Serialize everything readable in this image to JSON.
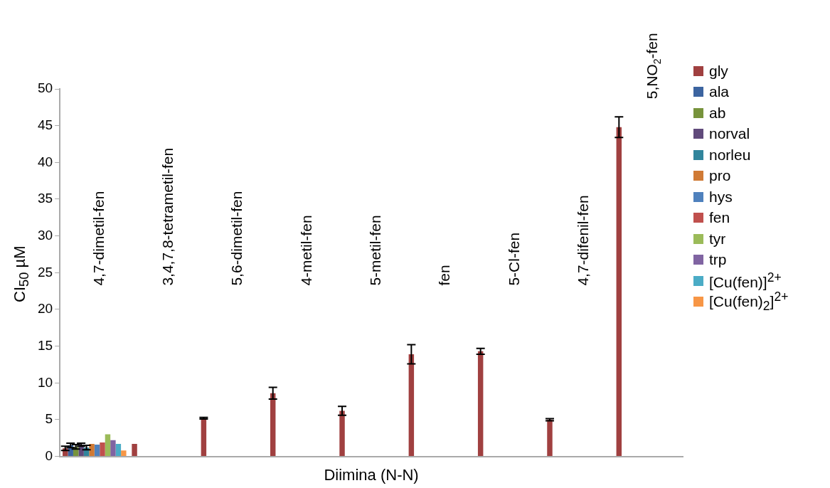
{
  "chart_data": {
    "type": "bar",
    "xlabel": "Diimina (N-N)",
    "ylabel": "CI$_{50}$ µM",
    "categories": [
      "4,7-dimetil-fen",
      "3,4,7,8-tetrametil-fen",
      "5,6-dimetil-fen",
      "4-metil-fen",
      "5-metil-fen",
      "fen",
      "5-Cl-fen",
      "4,7-difenil-fen",
      "5,NO$_{2}$-fen"
    ],
    "series": [
      {
        "name": "gly",
        "color": "#a04040",
        "values": [
          1.1,
          1.7,
          5.2,
          8.6,
          6.2,
          13.9,
          14.3,
          5.0,
          44.8
        ],
        "errors": [
          0.3,
          null,
          0.1,
          0.8,
          0.6,
          1.3,
          0.4,
          0.15,
          1.4
        ]
      },
      {
        "name": "ala",
        "color": "#3c64a0",
        "values": [
          1.5,
          null,
          null,
          null,
          null,
          null,
          null,
          null,
          null
        ],
        "errors": [
          0.3,
          null,
          null,
          null,
          null,
          null,
          null,
          null,
          null
        ]
      },
      {
        "name": "ab",
        "color": "#77933c",
        "values": [
          1.3,
          null,
          null,
          null,
          null,
          null,
          null,
          null,
          null
        ],
        "errors": [
          0.3,
          null,
          null,
          null,
          null,
          null,
          null,
          null,
          null
        ]
      },
      {
        "name": "norval",
        "color": "#604a7b",
        "values": [
          1.6,
          null,
          null,
          null,
          null,
          null,
          null,
          null,
          null
        ],
        "errors": [
          0.2,
          null,
          null,
          null,
          null,
          null,
          null,
          null,
          null
        ]
      },
      {
        "name": "norleu",
        "color": "#31859c",
        "values": [
          1.2,
          null,
          null,
          null,
          null,
          null,
          null,
          null,
          null
        ],
        "errors": [
          0.3,
          null,
          null,
          null,
          null,
          null,
          null,
          null,
          null
        ]
      },
      {
        "name": "pro",
        "color": "#d07a35",
        "values": [
          1.7,
          null,
          null,
          null,
          null,
          null,
          null,
          null,
          null
        ]
      },
      {
        "name": "hys",
        "color": "#4f81bd",
        "values": [
          1.6,
          null,
          null,
          null,
          null,
          null,
          null,
          null,
          null
        ]
      },
      {
        "name": "fen",
        "color": "#c0504d",
        "values": [
          1.9,
          null,
          null,
          null,
          null,
          null,
          null,
          null,
          null
        ]
      },
      {
        "name": "tyr",
        "color": "#9bbb59",
        "values": [
          3.0,
          null,
          null,
          null,
          null,
          null,
          null,
          null,
          null
        ]
      },
      {
        "name": "trp",
        "color": "#8064a2",
        "values": [
          2.2,
          null,
          null,
          null,
          null,
          null,
          null,
          null,
          null
        ]
      },
      {
        "name": "[Cu(fen)]$^{2+}$",
        "color": "#4bacc6",
        "values": [
          1.7,
          null,
          null,
          null,
          null,
          null,
          null,
          null,
          null
        ]
      },
      {
        "name": "[Cu(fen)$_{2}$]$^{2+}$",
        "color": "#f79646",
        "values": [
          0.8,
          null,
          null,
          null,
          null,
          null,
          null,
          null,
          null
        ]
      }
    ],
    "ylim": [
      0,
      50
    ],
    "yticks": [
      0,
      5,
      10,
      15,
      20,
      25,
      30,
      35,
      40,
      45,
      50
    ],
    "grid": false,
    "legend": "right"
  }
}
